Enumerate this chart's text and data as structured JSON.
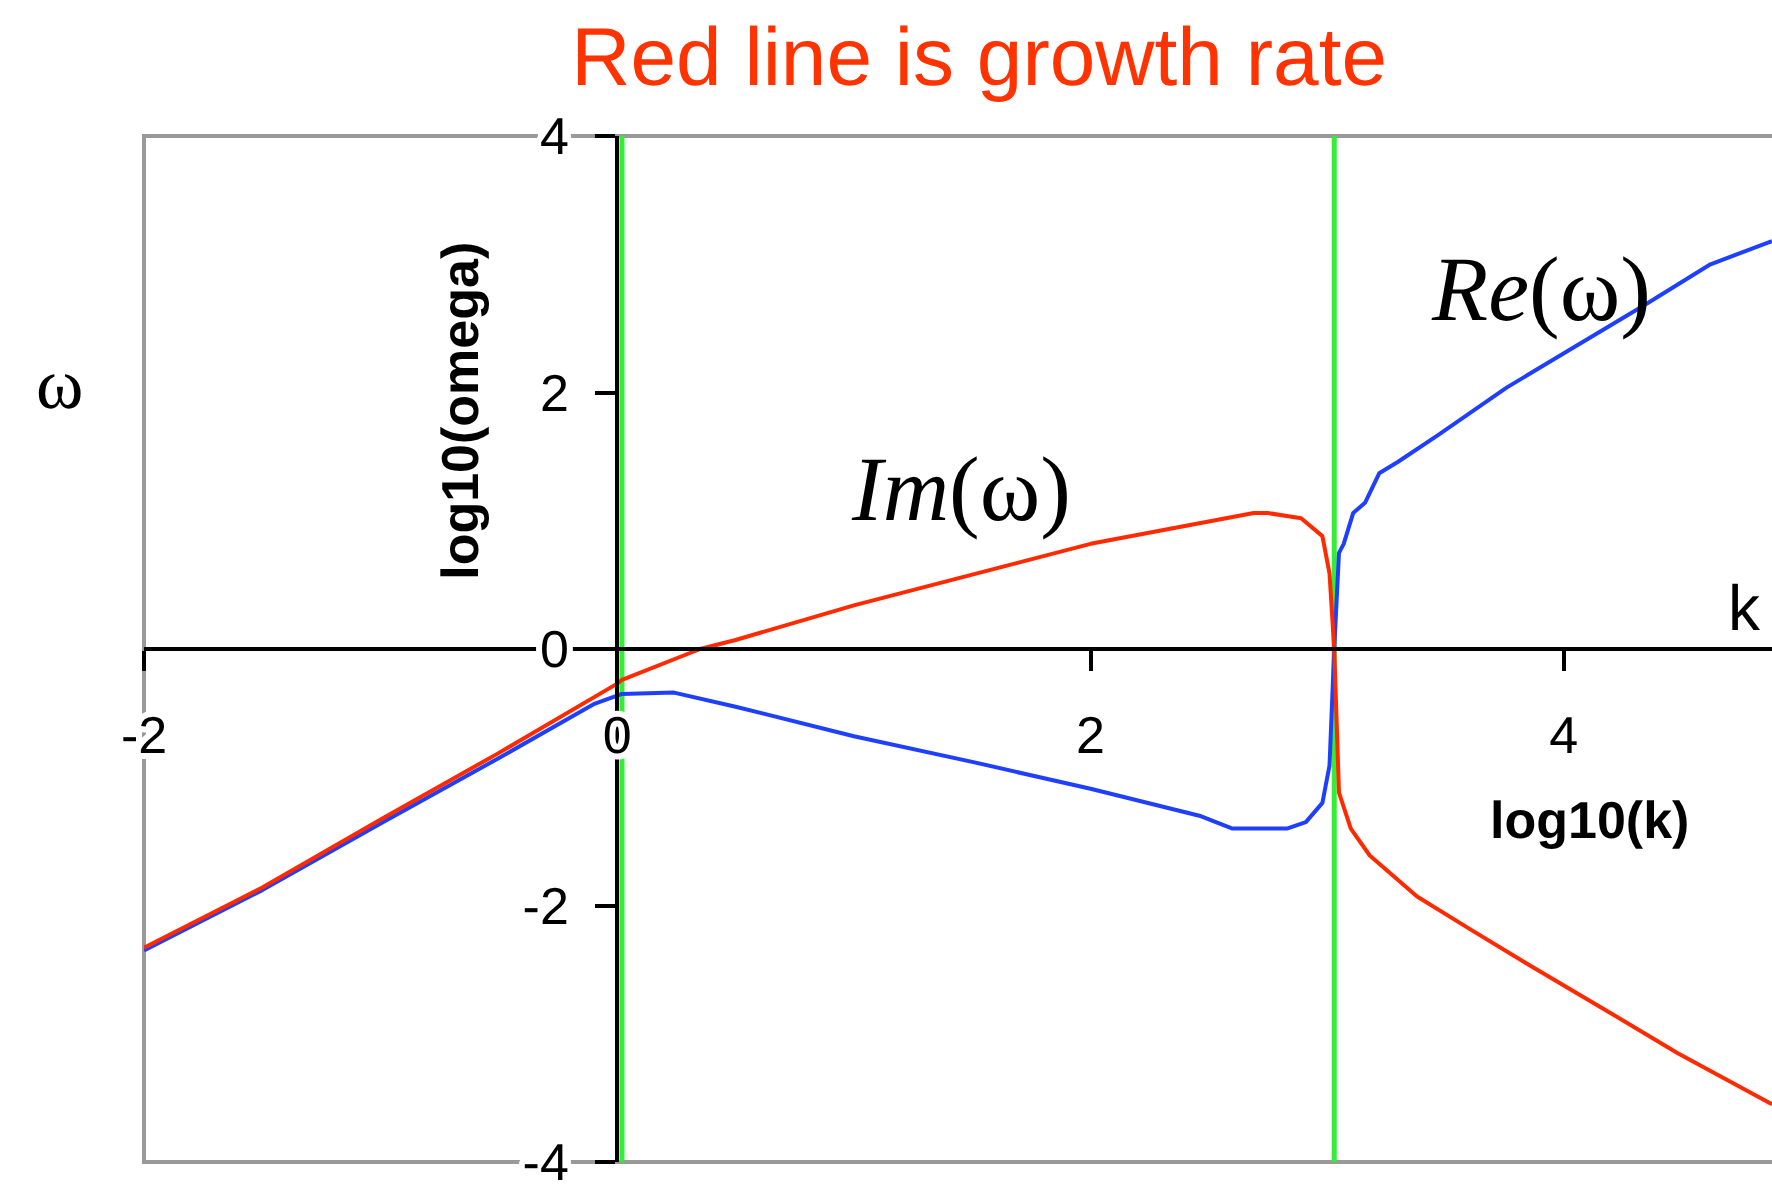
{
  "chart_data": {
    "type": "line",
    "title": "Red line is growth rate",
    "xlabel": "log10(k)",
    "ylabel": "log10(omega)",
    "annotations": [
      "ω",
      "k",
      "Im(ω)",
      "Re(ω)"
    ],
    "xlim": [
      -2,
      4.88
    ],
    "ylim": [
      -4,
      4
    ],
    "xticks": [
      -2,
      0,
      2,
      4
    ],
    "yticks": [
      -4,
      -2,
      0,
      2,
      4
    ],
    "series": [
      {
        "color": "#1f3fff",
        "x": [
          -2,
          -1.5,
          -1,
          -0.5,
          -0.1,
          0.02,
          0.24,
          0.5,
          1.0,
          1.5,
          2.0,
          2.46,
          2.6,
          2.83,
          2.91,
          2.98,
          3.01,
          3.03,
          3.05,
          3.07,
          3.11,
          3.16,
          3.22,
          3.3,
          3.47,
          3.76,
          4.05,
          4.34,
          4.62,
          4.88
        ],
        "values": [
          -2.35,
          -1.88,
          -1.36,
          -0.85,
          -0.43,
          -0.35,
          -0.34,
          -0.45,
          -0.68,
          -0.88,
          -1.09,
          -1.3,
          -1.4,
          -1.4,
          -1.35,
          -1.2,
          -0.91,
          0,
          0.75,
          0.82,
          1.06,
          1.14,
          1.37,
          1.46,
          1.67,
          2.04,
          2.36,
          2.68,
          3.0,
          3.18
        ]
      },
      {
        "color": "#ff2a00",
        "x": [
          -2,
          -1.5,
          -1,
          -0.5,
          0,
          0.02,
          0.35,
          0.5,
          1.0,
          1.5,
          2.0,
          2.46,
          2.69,
          2.75,
          2.89,
          2.98,
          3.01,
          3.03,
          3.05,
          3.1,
          3.18,
          3.38,
          3.6,
          3.85,
          4.19,
          4.48,
          4.88
        ],
        "values": [
          -2.33,
          -1.86,
          -1.33,
          -0.81,
          -0.27,
          -0.24,
          0,
          0.07,
          0.34,
          0.58,
          0.82,
          0.98,
          1.06,
          1.06,
          1.02,
          0.88,
          0.59,
          0,
          -1.12,
          -1.4,
          -1.61,
          -1.93,
          -2.18,
          -2.46,
          -2.83,
          -3.15,
          -3.55
        ]
      }
    ],
    "ref_lines": [
      {
        "axis": "x",
        "value": 0.02,
        "color": "#33ee33"
      },
      {
        "axis": "x",
        "value": 3.03,
        "color": "#33ee33"
      }
    ]
  }
}
